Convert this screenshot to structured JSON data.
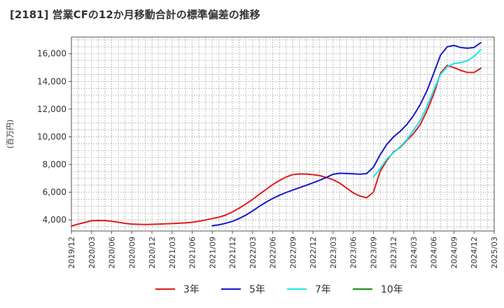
{
  "chart_data": {
    "type": "line",
    "title": "[2181]  営業CFの12か月移動合計の標準偏差の推移",
    "ylabel": "(百万円)",
    "xlabel": "",
    "ylim": [
      3200,
      17200
    ],
    "yticks": [
      4000,
      6000,
      8000,
      10000,
      12000,
      14000,
      16000
    ],
    "ytick_labels": [
      "4,000",
      "6,000",
      "8,000",
      "10,000",
      "12,000",
      "14,000",
      "16,000"
    ],
    "x_start": "2019/12",
    "x_end": "2025/03",
    "xtick_labels": [
      "2019/12",
      "2020/03",
      "2020/06",
      "2020/09",
      "2020/12",
      "2021/03",
      "2021/06",
      "2021/09",
      "2021/12",
      "2022/03",
      "2022/06",
      "2022/09",
      "2022/12",
      "2023/03",
      "2023/06",
      "2023/09",
      "2023/12",
      "2024/03",
      "2024/06",
      "2024/09",
      "2024/12",
      "2025/03"
    ],
    "grid": true,
    "legend_position": "bottom",
    "series": [
      {
        "name": "3年",
        "color": "#dd1c1c",
        "points": [
          [
            "2019/12",
            3550
          ],
          [
            "2020/01",
            3700
          ],
          [
            "2020/02",
            3820
          ],
          [
            "2020/03",
            3940
          ],
          [
            "2020/04",
            3960
          ],
          [
            "2020/05",
            3950
          ],
          [
            "2020/06",
            3900
          ],
          [
            "2020/07",
            3830
          ],
          [
            "2020/08",
            3750
          ],
          [
            "2020/09",
            3700
          ],
          [
            "2020/10",
            3680
          ],
          [
            "2020/11",
            3670
          ],
          [
            "2020/12",
            3680
          ],
          [
            "2021/01",
            3700
          ],
          [
            "2021/02",
            3720
          ],
          [
            "2021/03",
            3740
          ],
          [
            "2021/04",
            3760
          ],
          [
            "2021/05",
            3790
          ],
          [
            "2021/06",
            3830
          ],
          [
            "2021/07",
            3900
          ],
          [
            "2021/08",
            4000
          ],
          [
            "2021/09",
            4100
          ],
          [
            "2021/10",
            4200
          ],
          [
            "2021/11",
            4350
          ],
          [
            "2021/12",
            4580
          ],
          [
            "2022/01",
            4850
          ],
          [
            "2022/02",
            5150
          ],
          [
            "2022/03",
            5480
          ],
          [
            "2022/04",
            5850
          ],
          [
            "2022/05",
            6200
          ],
          [
            "2022/06",
            6550
          ],
          [
            "2022/07",
            6850
          ],
          [
            "2022/08",
            7100
          ],
          [
            "2022/09",
            7270
          ],
          [
            "2022/10",
            7320
          ],
          [
            "2022/11",
            7310
          ],
          [
            "2022/12",
            7270
          ],
          [
            "2023/01",
            7200
          ],
          [
            "2023/02",
            7070
          ],
          [
            "2023/03",
            6900
          ],
          [
            "2023/04",
            6650
          ],
          [
            "2023/05",
            6300
          ],
          [
            "2023/06",
            5950
          ],
          [
            "2023/07",
            5720
          ],
          [
            "2023/08",
            5600
          ],
          [
            "2023/09",
            6000
          ],
          [
            "2023/10",
            7500
          ],
          [
            "2023/11",
            8300
          ],
          [
            "2023/12",
            8900
          ],
          [
            "2024/01",
            9250
          ],
          [
            "2024/02",
            9750
          ],
          [
            "2024/03",
            10250
          ],
          [
            "2024/04",
            10900
          ],
          [
            "2024/05",
            11900
          ],
          [
            "2024/06",
            13100
          ],
          [
            "2024/07",
            14600
          ],
          [
            "2024/08",
            15150
          ],
          [
            "2024/09",
            15000
          ],
          [
            "2024/10",
            14800
          ],
          [
            "2024/11",
            14650
          ],
          [
            "2024/12",
            14650
          ],
          [
            "2025/01",
            14950
          ]
        ]
      },
      {
        "name": "5年",
        "color": "#1818c8",
        "points": [
          [
            "2021/09",
            3580
          ],
          [
            "2021/10",
            3650
          ],
          [
            "2021/11",
            3760
          ],
          [
            "2021/12",
            3900
          ],
          [
            "2022/01",
            4100
          ],
          [
            "2022/02",
            4350
          ],
          [
            "2022/03",
            4650
          ],
          [
            "2022/04",
            4980
          ],
          [
            "2022/05",
            5280
          ],
          [
            "2022/06",
            5550
          ],
          [
            "2022/07",
            5780
          ],
          [
            "2022/08",
            5980
          ],
          [
            "2022/09",
            6160
          ],
          [
            "2022/10",
            6330
          ],
          [
            "2022/11",
            6500
          ],
          [
            "2022/12",
            6680
          ],
          [
            "2023/01",
            6870
          ],
          [
            "2023/02",
            7070
          ],
          [
            "2023/03",
            7300
          ],
          [
            "2023/04",
            7370
          ],
          [
            "2023/05",
            7350
          ],
          [
            "2023/06",
            7330
          ],
          [
            "2023/07",
            7300
          ],
          [
            "2023/08",
            7350
          ],
          [
            "2023/09",
            7800
          ],
          [
            "2023/10",
            8700
          ],
          [
            "2023/11",
            9450
          ],
          [
            "2023/12",
            10000
          ],
          [
            "2024/01",
            10400
          ],
          [
            "2024/02",
            10900
          ],
          [
            "2024/03",
            11550
          ],
          [
            "2024/04",
            12350
          ],
          [
            "2024/05",
            13350
          ],
          [
            "2024/06",
            14600
          ],
          [
            "2024/07",
            15900
          ],
          [
            "2024/08",
            16500
          ],
          [
            "2024/09",
            16600
          ],
          [
            "2024/10",
            16450
          ],
          [
            "2024/11",
            16400
          ],
          [
            "2024/12",
            16450
          ],
          [
            "2025/01",
            16800
          ]
        ]
      },
      {
        "name": "7年",
        "color": "#18e8e8",
        "points": [
          [
            "2023/09",
            7100
          ],
          [
            "2023/10",
            7700
          ],
          [
            "2023/11",
            8400
          ],
          [
            "2023/12",
            8850
          ],
          [
            "2024/01",
            9300
          ],
          [
            "2024/02",
            9800
          ],
          [
            "2024/03",
            10500
          ],
          [
            "2024/04",
            11200
          ],
          [
            "2024/05",
            12200
          ],
          [
            "2024/06",
            13400
          ],
          [
            "2024/07",
            14500
          ],
          [
            "2024/08",
            15050
          ],
          [
            "2024/09",
            15300
          ],
          [
            "2024/10",
            15350
          ],
          [
            "2024/11",
            15500
          ],
          [
            "2024/12",
            15800
          ],
          [
            "2025/01",
            16300
          ]
        ]
      },
      {
        "name": "10年",
        "color": "#1a8c1a",
        "points": []
      }
    ]
  }
}
